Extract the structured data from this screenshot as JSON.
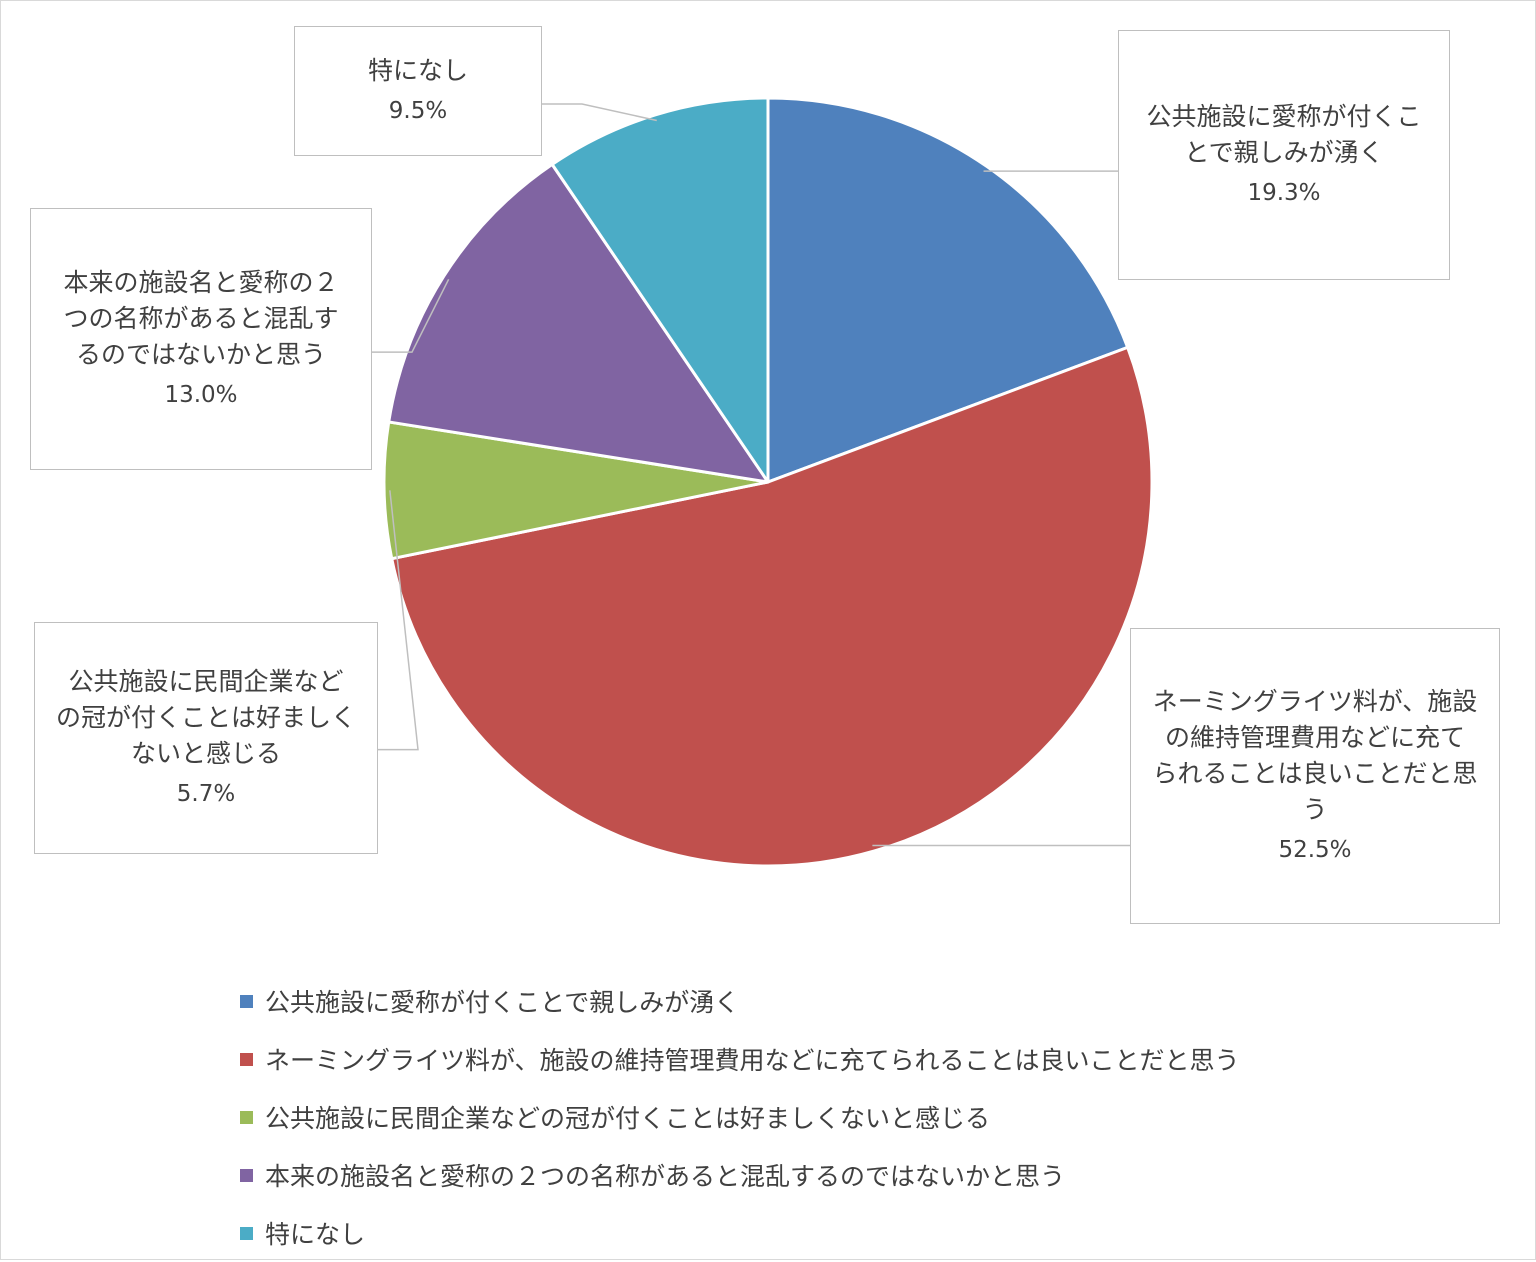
{
  "chart_data": {
    "type": "pie",
    "title": "",
    "categories": [
      "公共施設に愛称が付くことで親しみが湧く",
      "ネーミングライツ料が、施設の維持管理費用などに充てられることは良いことだと思う",
      "公共施設に民間企業などの冠が付くことは好ましくないと感じる",
      "本来の施設名と愛称の２つの名称があると混乱するのではないかと思う",
      "特になし"
    ],
    "callout_labels": [
      "公共施設に愛称が付くこ\nとで親しみが湧く",
      "ネーミングライツ料が、施設\nの維持管理費用などに充て\nられることは良いことだと思\nう",
      "公共施設に民間企業など\nの冠が付くことは好ましく\nないと感じる",
      "本来の施設名と愛称の２\nつの名称があると混乱す\nるのではないかと思う",
      "特になし"
    ],
    "values": [
      19.3,
      52.5,
      5.7,
      13.0,
      9.5
    ],
    "value_labels": [
      "19.3%",
      "52.5%",
      "5.7%",
      "13.0%",
      "9.5%"
    ],
    "unit": "%",
    "colors": [
      "#4f81bd",
      "#c0504d",
      "#9bbb59",
      "#8064a2",
      "#4bacc6"
    ],
    "start_angle": "12 o'clock",
    "direction": "clockwise",
    "legend_position": "bottom"
  }
}
